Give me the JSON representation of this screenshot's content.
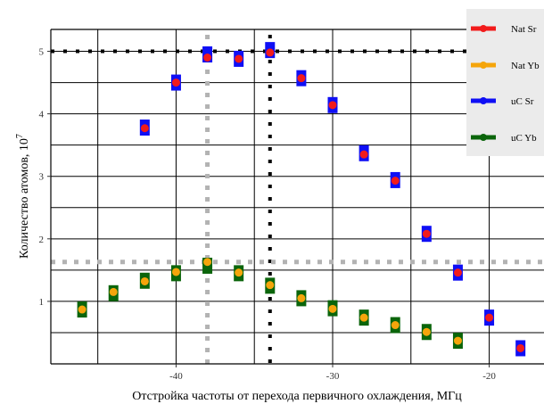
{
  "chart_data": {
    "type": "scatter",
    "xlabel": "Отстройка частоты от перехода первичного охлаждения, МГц",
    "ylabel": "Количество атомов, 10",
    "ylabel_superscript": "7",
    "xlim": [
      -48,
      -16.5
    ],
    "ylim": [
      0,
      5.35
    ],
    "x_ticks": [
      -40,
      -30,
      -20
    ],
    "x_tick_labels": [
      "-40",
      "-30",
      "-20"
    ],
    "y_ticks": [
      1,
      2,
      3,
      4,
      5
    ],
    "y_tick_labels": [
      "1",
      "2",
      "3",
      "4",
      "5"
    ],
    "grid": "on",
    "vertical_grid": [
      -45,
      -40,
      -35,
      -30,
      -25,
      -20
    ],
    "horizontal_grid": [
      0.5,
      1,
      1.5,
      2,
      2.5,
      3,
      3.5,
      4,
      4.5,
      5
    ],
    "reference_lines": [
      {
        "orientation": "horizontal",
        "value": 5.0,
        "color": "#000000",
        "style": "dotted"
      },
      {
        "orientation": "vertical",
        "value": -34,
        "color": "#000000",
        "style": "dotted"
      },
      {
        "orientation": "vertical",
        "value": -38,
        "color": "#b3b3b3",
        "style": "dotted"
      },
      {
        "orientation": "horizontal",
        "value": 1.63,
        "color": "#b3b3b3",
        "style": "dotted"
      }
    ],
    "legend_position": "top-right",
    "series": [
      {
        "name": "Nat Sr",
        "color": "#f21b1b",
        "marker": "circle",
        "x": [
          -42,
          -40,
          -38,
          -36,
          -34,
          -32,
          -30,
          -28,
          -26,
          -24,
          -22,
          -20,
          -18
        ],
        "y": [
          3.77,
          4.5,
          4.9,
          4.88,
          4.98,
          4.57,
          4.14,
          3.35,
          2.93,
          2.08,
          1.46,
          0.74,
          0.25
        ]
      },
      {
        "name": "Nat Yb",
        "color": "#f5a50b",
        "marker": "circle",
        "x": [
          -46,
          -44,
          -42,
          -40,
          -38,
          -36,
          -34,
          -32,
          -30,
          -28,
          -26,
          -24,
          -22
        ],
        "y": [
          0.87,
          1.15,
          1.32,
          1.47,
          1.63,
          1.46,
          1.26,
          1.05,
          0.88,
          0.74,
          0.62,
          0.51,
          0.37
        ]
      },
      {
        "name": "uC Sr",
        "color": "#0f0ff5",
        "marker": "square",
        "x": [
          -42,
          -40,
          -38,
          -36,
          -34,
          -32,
          -30,
          -28,
          -26,
          -24,
          -22,
          -20,
          -18
        ],
        "y": [
          3.78,
          4.5,
          4.95,
          4.88,
          5.02,
          4.57,
          4.14,
          3.37,
          2.94,
          2.08,
          1.46,
          0.74,
          0.25
        ]
      },
      {
        "name": "uC Yb",
        "color": "#0b650b",
        "marker": "square",
        "x": [
          -46,
          -44,
          -42,
          -40,
          -38,
          -36,
          -34,
          -32,
          -30,
          -28,
          -26,
          -24,
          -22
        ],
        "y": [
          0.87,
          1.13,
          1.33,
          1.45,
          1.57,
          1.45,
          1.25,
          1.05,
          0.89,
          0.74,
          0.62,
          0.51,
          0.37
        ]
      }
    ]
  }
}
